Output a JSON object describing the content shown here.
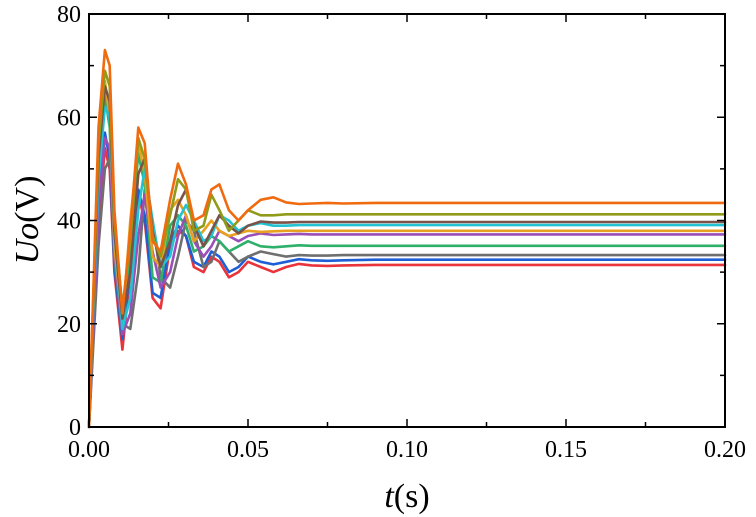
{
  "chart_data": {
    "type": "line",
    "xlabel_var": "t",
    "xlabel_unit": "(s)",
    "ylabel_var": "Uo",
    "ylabel_unit": "(V)",
    "xlim": [
      0,
      0.2
    ],
    "ylim": [
      0,
      80
    ],
    "xticks": [
      0,
      0.05,
      0.1,
      0.15,
      0.2
    ],
    "xtick_labels": [
      "0.00",
      "0.05",
      "0.10",
      "0.15",
      "0.20"
    ],
    "yticks": [
      0,
      20,
      40,
      60,
      80
    ],
    "ytick_labels": [
      "0",
      "20",
      "40",
      "60",
      "80"
    ],
    "grid": false,
    "legend": "none",
    "x": [
      0,
      0.003,
      0.005,
      0.0065,
      0.008,
      0.0105,
      0.013,
      0.0155,
      0.0175,
      0.02,
      0.0225,
      0.0255,
      0.028,
      0.0305,
      0.033,
      0.036,
      0.0385,
      0.041,
      0.044,
      0.047,
      0.05,
      0.054,
      0.058,
      0.062,
      0.066,
      0.07,
      0.075,
      0.08,
      0.09,
      0.1,
      0.12,
      0.15,
      0.2
    ],
    "series": [
      {
        "color": "#e8343a",
        "values": [
          0,
          40,
          54,
          50,
          30,
          15,
          30,
          45,
          40,
          25,
          23,
          35,
          38,
          37,
          31,
          30,
          33,
          32,
          29,
          30,
          32,
          31,
          30,
          31,
          31.6,
          31.3,
          31.2,
          31.3,
          31.4,
          31.4,
          31.4,
          31.4,
          31.4
        ]
      },
      {
        "color": "#1f5fd6",
        "values": [
          0,
          44,
          57,
          52,
          31,
          17,
          31,
          46,
          41,
          26,
          25,
          36,
          39,
          37,
          32,
          31,
          34,
          33,
          30,
          31,
          33,
          32,
          31.5,
          32,
          32.5,
          32.3,
          32.2,
          32.3,
          32.4,
          32.4,
          32.4,
          32.4,
          32.4
        ]
      },
      {
        "color": "#6f6f6f",
        "values": [
          0,
          35,
          50,
          52,
          35,
          20,
          19,
          30,
          46,
          40,
          29,
          27,
          33,
          40,
          38,
          31,
          32,
          36,
          34,
          32,
          33,
          34,
          33.5,
          33,
          33.3,
          33.2,
          33.2,
          33.3,
          33.3,
          33.3,
          33.3,
          33.3,
          33.3
        ]
      },
      {
        "color": "#2eb06a",
        "values": [
          0,
          50,
          64,
          58,
          33,
          18,
          35,
          53,
          47,
          29,
          28,
          39,
          41,
          39,
          34,
          35,
          37,
          36,
          34,
          35,
          36,
          35,
          34.8,
          35,
          35.2,
          35.1,
          35.1,
          35.1,
          35.1,
          35.1,
          35.1,
          35.1,
          35.1
        ]
      },
      {
        "color": "#9a4fb8",
        "values": [
          0,
          42,
          56,
          54,
          34,
          18,
          22,
          37,
          45,
          34,
          27,
          30,
          37,
          41,
          36,
          33,
          35,
          38,
          37,
          36,
          37,
          37.5,
          37.2,
          37.3,
          37.4,
          37.3,
          37.3,
          37.3,
          37.3,
          37.3,
          37.3,
          37.3,
          37.3
        ]
      },
      {
        "color": "#e7a020",
        "values": [
          0,
          54,
          67,
          60,
          35,
          20,
          40,
          55,
          49,
          33,
          31,
          42,
          44,
          41,
          36,
          38,
          40,
          38,
          37,
          37.5,
          38,
          37.8,
          37.9,
          38,
          38,
          38,
          38,
          38,
          38,
          38,
          38,
          38,
          38
        ]
      },
      {
        "color": "#22c4d4",
        "values": [
          0,
          48,
          62,
          60,
          38,
          19,
          25,
          42,
          50,
          40,
          31,
          33,
          40,
          43,
          40,
          36,
          37,
          41,
          40,
          38,
          39,
          39.5,
          39,
          39,
          39.1,
          39.1,
          39.1,
          39.1,
          39.1,
          39.1,
          39.1,
          39.1,
          39.1
        ]
      },
      {
        "color": "#7a5248",
        "values": [
          0,
          52,
          66,
          63,
          38,
          21,
          30,
          49,
          52,
          38,
          31,
          36,
          43,
          46,
          39,
          35,
          38,
          41,
          39,
          37.5,
          39,
          39.8,
          39.6,
          39.6,
          39.7,
          39.7,
          39.7,
          39.7,
          39.7,
          39.7,
          39.7,
          39.7,
          39.7
        ]
      },
      {
        "color": "#909c18",
        "values": [
          0,
          55,
          69,
          66,
          40,
          23,
          36,
          56,
          52,
          37,
          33,
          41,
          48,
          46,
          38,
          39,
          45,
          42,
          38,
          40,
          42,
          41,
          41,
          41.2,
          41.2,
          41.2,
          41.2,
          41.2,
          41.2,
          41.2,
          41.2,
          41.2,
          41.2
        ]
      },
      {
        "color": "#f06a10",
        "values": [
          0,
          58,
          73,
          70,
          42,
          22,
          38,
          58,
          55,
          36,
          34,
          44,
          51,
          47,
          40,
          41,
          46,
          47,
          42,
          40,
          42,
          44,
          44.5,
          43.5,
          43.2,
          43.3,
          43.4,
          43.3,
          43.4,
          43.4,
          43.4,
          43.4,
          43.4
        ]
      }
    ]
  }
}
